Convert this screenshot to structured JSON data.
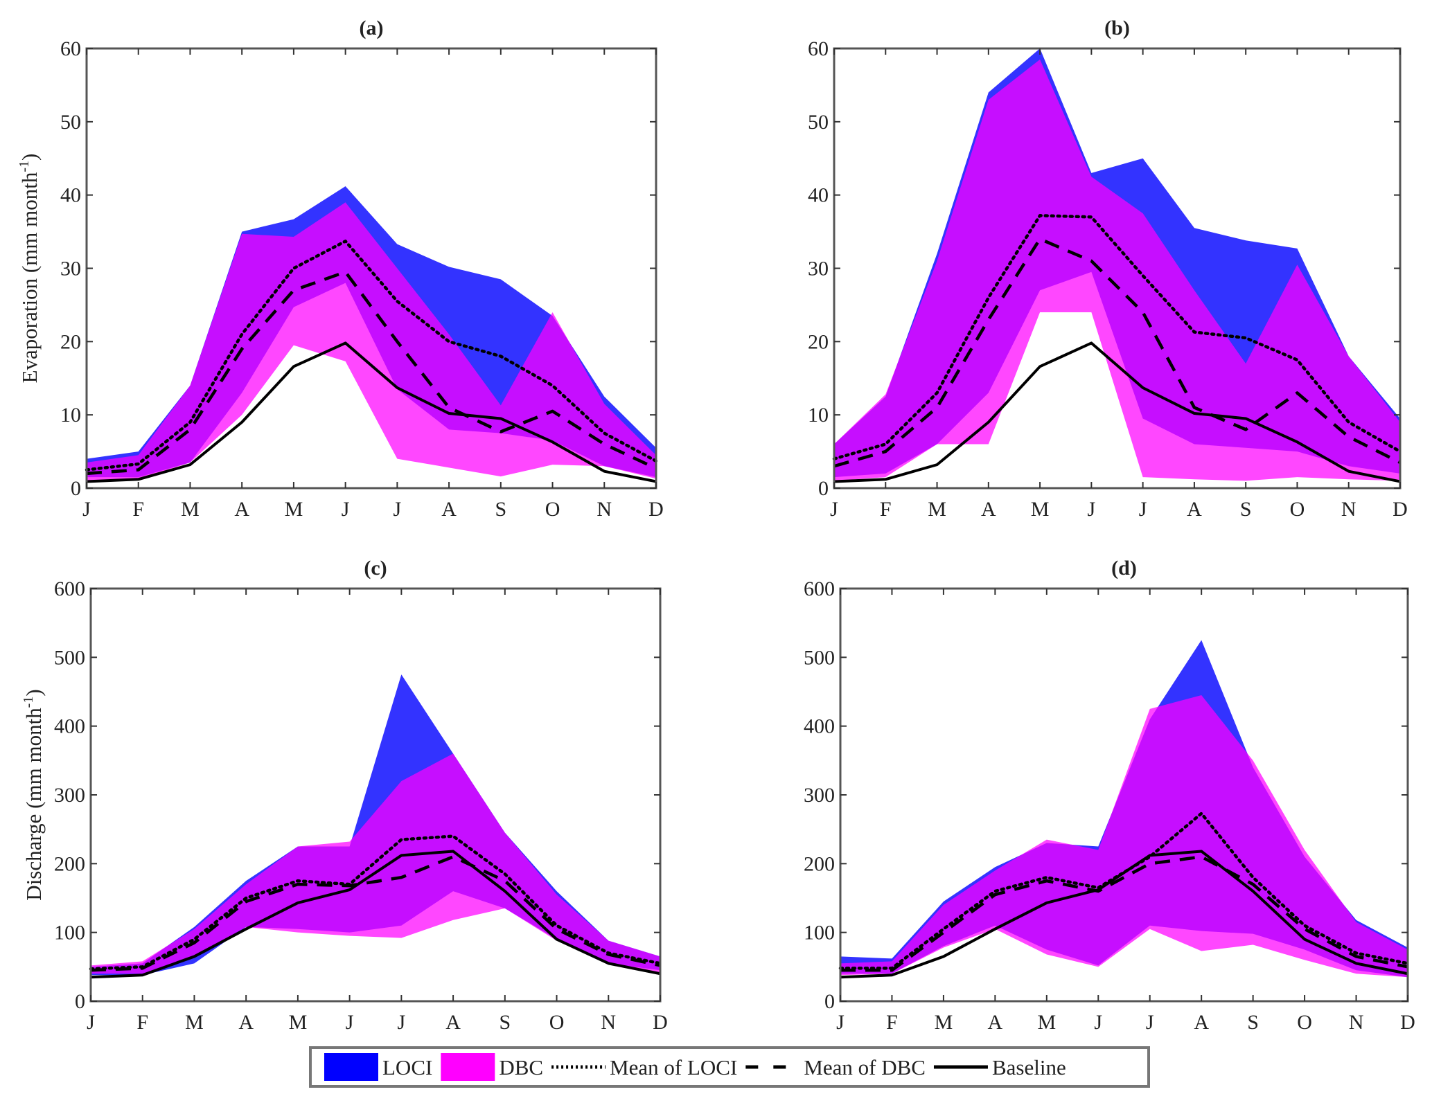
{
  "legend": {
    "items": [
      {
        "label": "LOCI",
        "kind": "patch",
        "color": "#0000ff"
      },
      {
        "label": "DBC",
        "kind": "patch",
        "color": "#ff00ff"
      },
      {
        "label": "Mean of LOCI",
        "kind": "dotted"
      },
      {
        "label": "Mean of DBC",
        "kind": "dashed"
      },
      {
        "label": "Baseline",
        "kind": "solid"
      }
    ]
  },
  "colors": {
    "loci": "#0000ff",
    "dbc": "#ff00ff",
    "line": "#000000",
    "axis": "#555555"
  },
  "chart_data": [
    {
      "type": "area",
      "title": "(a)",
      "ylabel": "Evaporation (mm month",
      "ylabel_sup": "-1",
      "ylabel_close": ")",
      "ylim": [
        0,
        60
      ],
      "yticks": [
        0,
        10,
        20,
        30,
        40,
        50,
        60
      ],
      "categories": [
        "J",
        "F",
        "M",
        "A",
        "M",
        "J",
        "J",
        "A",
        "S",
        "O",
        "N",
        "D"
      ],
      "bands": {
        "LOCI": {
          "lower": [
            1.5,
            1.5,
            3.5,
            13,
            24.7,
            28,
            13.5,
            8,
            7.5,
            6.5,
            3,
            1.5
          ],
          "upper": [
            4,
            5,
            14,
            35,
            36.7,
            41.2,
            33.3,
            30.2,
            28.5,
            23.5,
            12.5,
            5.5
          ]
        },
        "DBC": {
          "lower": [
            1,
            1.2,
            3.5,
            10,
            19.5,
            17.3,
            4,
            2.8,
            1.6,
            3.2,
            3,
            1.3
          ],
          "upper": [
            3.5,
            4.5,
            14,
            34.7,
            34.3,
            39,
            30,
            21,
            11.3,
            24,
            11.5,
            4.5
          ]
        }
      },
      "series": [
        {
          "name": "Mean of LOCI",
          "values": [
            2.5,
            3.3,
            9,
            21,
            30,
            33.7,
            25.5,
            20,
            18,
            14,
            7.5,
            3.7
          ]
        },
        {
          "name": "Mean of DBC",
          "values": [
            2,
            2.5,
            8,
            19,
            27,
            29.5,
            20,
            11,
            7.7,
            10.5,
            6,
            2.7
          ]
        },
        {
          "name": "Baseline",
          "values": [
            0.9,
            1.2,
            3.2,
            9,
            16.6,
            19.8,
            13.7,
            10.2,
            9.5,
            6.3,
            2.3,
            0.9
          ]
        }
      ]
    },
    {
      "type": "area",
      "title": "(b)",
      "ylabel": "",
      "ylim": [
        0,
        60
      ],
      "yticks": [
        0,
        10,
        20,
        30,
        40,
        50,
        60
      ],
      "categories": [
        "J",
        "F",
        "M",
        "A",
        "M",
        "J",
        "J",
        "A",
        "S",
        "O",
        "N",
        "D"
      ],
      "bands": {
        "LOCI": {
          "lower": [
            1.5,
            2,
            6,
            13,
            27,
            29.5,
            9.5,
            6,
            5.5,
            5,
            3,
            2
          ],
          "upper": [
            6,
            12.5,
            32,
            54,
            60,
            43,
            45,
            35.5,
            33.8,
            32.7,
            18,
            9.5
          ]
        },
        "DBC": {
          "lower": [
            1,
            1.5,
            6,
            6,
            24,
            24,
            1.5,
            1.2,
            1,
            1.5,
            1.2,
            1
          ],
          "upper": [
            6,
            12.8,
            31,
            53,
            58.5,
            42.5,
            37.5,
            27,
            17,
            30.5,
            18,
            9
          ]
        }
      },
      "series": [
        {
          "name": "Mean of LOCI",
          "values": [
            4,
            6,
            13,
            26,
            37.2,
            37,
            29,
            21.3,
            20.5,
            17.5,
            9,
            5
          ]
        },
        {
          "name": "Mean of DBC",
          "values": [
            3,
            5,
            11,
            23,
            34,
            31,
            24,
            11,
            8,
            13,
            7,
            3.5
          ]
        },
        {
          "name": "Baseline",
          "values": [
            0.9,
            1.2,
            3.2,
            9,
            16.6,
            19.8,
            13.7,
            10.2,
            9.5,
            6.3,
            2.3,
            0.9
          ]
        }
      ]
    },
    {
      "type": "area",
      "title": "(c)",
      "ylabel": "Discharge (mm month",
      "ylabel_sup": "-1",
      "ylabel_close": ")",
      "ylim": [
        0,
        600
      ],
      "yticks": [
        0,
        100,
        200,
        300,
        400,
        500,
        600
      ],
      "categories": [
        "J",
        "F",
        "M",
        "A",
        "M",
        "J",
        "J",
        "A",
        "S",
        "O",
        "N",
        "D"
      ],
      "bands": {
        "LOCI": {
          "lower": [
            38,
            38,
            55,
            108,
            105,
            100,
            110,
            160,
            135,
            90,
            55,
            45
          ],
          "upper": [
            50,
            55,
            108,
            175,
            225,
            225,
            475,
            360,
            245,
            160,
            88,
            65
          ]
        },
        "DBC": {
          "lower": [
            40,
            40,
            65,
            108,
            100,
            95,
            92,
            118,
            135,
            88,
            55,
            42
          ],
          "upper": [
            52,
            58,
            105,
            170,
            225,
            232,
            320,
            360,
            245,
            155,
            88,
            65
          ]
        }
      },
      "series": [
        {
          "name": "Mean of LOCI",
          "values": [
            47,
            50,
            90,
            150,
            175,
            170,
            235,
            240,
            185,
            110,
            70,
            55
          ]
        },
        {
          "name": "Mean of DBC",
          "values": [
            45,
            48,
            85,
            145,
            170,
            168,
            180,
            210,
            175,
            105,
            68,
            52
          ]
        },
        {
          "name": "Baseline",
          "values": [
            35,
            38,
            65,
            105,
            143,
            162,
            212,
            218,
            160,
            90,
            55,
            40
          ]
        }
      ]
    },
    {
      "type": "area",
      "title": "(d)",
      "ylabel": "",
      "ylim": [
        0,
        600
      ],
      "yticks": [
        0,
        100,
        200,
        300,
        400,
        500,
        600
      ],
      "categories": [
        "J",
        "F",
        "M",
        "A",
        "M",
        "J",
        "J",
        "A",
        "S",
        "O",
        "N",
        "D"
      ],
      "bands": {
        "LOCI": {
          "lower": [
            40,
            40,
            80,
            110,
            75,
            52,
            110,
            102,
            98,
            75,
            45,
            35
          ],
          "upper": [
            65,
            62,
            145,
            195,
            230,
            225,
            410,
            525,
            340,
            210,
            118,
            78
          ]
        },
        "DBC": {
          "lower": [
            38,
            40,
            78,
            105,
            68,
            50,
            105,
            73,
            82,
            60,
            40,
            35
          ],
          "upper": [
            55,
            58,
            140,
            190,
            235,
            220,
            425,
            445,
            350,
            220,
            115,
            75
          ]
        }
      },
      "series": [
        {
          "name": "Mean of LOCI",
          "values": [
            48,
            48,
            105,
            160,
            180,
            165,
            210,
            273,
            180,
            110,
            70,
            55
          ]
        },
        {
          "name": "Mean of DBC",
          "values": [
            45,
            45,
            100,
            155,
            175,
            160,
            200,
            210,
            170,
            105,
            65,
            50
          ]
        },
        {
          "name": "Baseline",
          "values": [
            35,
            38,
            65,
            105,
            143,
            162,
            212,
            218,
            160,
            90,
            55,
            40
          ]
        }
      ]
    }
  ]
}
